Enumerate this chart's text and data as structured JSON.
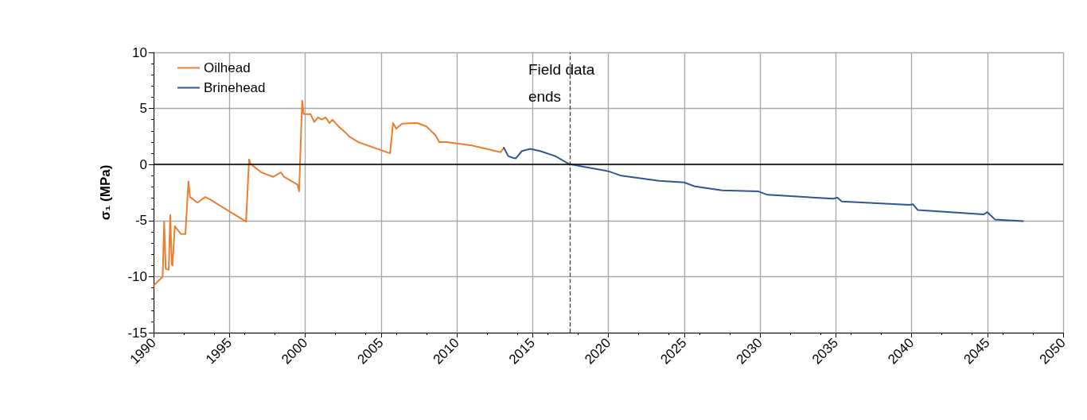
{
  "chart_data": {
    "type": "line",
    "ylabel": "σ₁ (MPa)",
    "xlim": [
      1990,
      2050
    ],
    "xticks": [
      1990,
      1995,
      2000,
      2005,
      2010,
      2015,
      2020,
      2025,
      2030,
      2035,
      2040,
      2045,
      2050
    ],
    "ylim": [
      -15,
      10
    ],
    "yticks": [
      -15,
      -10,
      -5,
      0,
      5,
      10
    ],
    "grid": true,
    "legend": "top left",
    "marker": "none",
    "line_style": "solid",
    "ref_lines": [
      {
        "axis": "x",
        "value": 2017.45,
        "label": "Field data ends",
        "color": "#404040",
        "line_style": "dashed"
      },
      {
        "axis": "y",
        "value": 0,
        "label": null,
        "color": "#000000",
        "line_style": "solid"
      }
    ],
    "series": [
      {
        "name": "Oilhead",
        "color": "#ed7d31",
        "x": [
          1990.0,
          1990.6,
          1990.7,
          1990.8,
          1991.0,
          1991.1,
          1991.2,
          1991.25,
          1991.4,
          1991.8,
          1992.1,
          1992.3,
          1992.4,
          1992.9,
          1993.4,
          1993.7,
          1996.1,
          1996.3,
          1996.4,
          1997.1,
          1997.9,
          1998.4,
          1998.6,
          1999.5,
          1999.6,
          1999.8,
          1999.9,
          2000.35,
          2000.6,
          2000.85,
          2001.1,
          2001.35,
          2001.6,
          2001.8,
          2002.2,
          2002.7,
          2002.9,
          2003.5,
          2005.6,
          2005.8,
          2006.0,
          2006.4,
          2007.4,
          2008.0,
          2008.6,
          2008.85,
          2009.35,
          2011.0,
          2012.9,
          2013.1
        ],
        "values": [
          -10.8,
          -10.0,
          -5.1,
          -9.3,
          -9.4,
          -4.5,
          -8.9,
          -9.0,
          -5.5,
          -6.2,
          -6.2,
          -1.5,
          -2.9,
          -3.4,
          -2.9,
          -3.1,
          -5.1,
          0.45,
          0.06,
          -0.7,
          -1.1,
          -0.7,
          -1.1,
          -1.8,
          -2.4,
          5.7,
          4.5,
          4.5,
          3.8,
          4.2,
          4.0,
          4.2,
          3.7,
          4.0,
          3.4,
          2.8,
          2.5,
          2.0,
          1.0,
          3.7,
          3.2,
          3.65,
          3.7,
          3.4,
          2.6,
          2.0,
          2.0,
          1.7,
          1.1,
          1.5
        ]
      },
      {
        "name": "Brinehead",
        "color": "#2f5597",
        "x": [
          2013.1,
          2013.4,
          2013.7,
          2013.9,
          2014.3,
          2014.85,
          2015.5,
          2016.5,
          2017.4,
          2018.35,
          2020.0,
          2020.85,
          2023.35,
          2025.0,
          2025.7,
          2027.5,
          2029.9,
          2030.5,
          2034.85,
          2035.1,
          2035.4,
          2039.85,
          2040.1,
          2040.4,
          2044.75,
          2045.0,
          2045.5,
          2047.35
        ],
        "values": [
          1.5,
          0.75,
          0.6,
          0.55,
          1.2,
          1.4,
          1.2,
          0.75,
          0.05,
          -0.2,
          -0.6,
          -1.0,
          -1.45,
          -1.6,
          -1.95,
          -2.3,
          -2.4,
          -2.7,
          -3.05,
          -2.95,
          -3.3,
          -3.6,
          -3.55,
          -4.05,
          -4.45,
          -4.25,
          -4.9,
          -5.05
        ]
      }
    ]
  }
}
